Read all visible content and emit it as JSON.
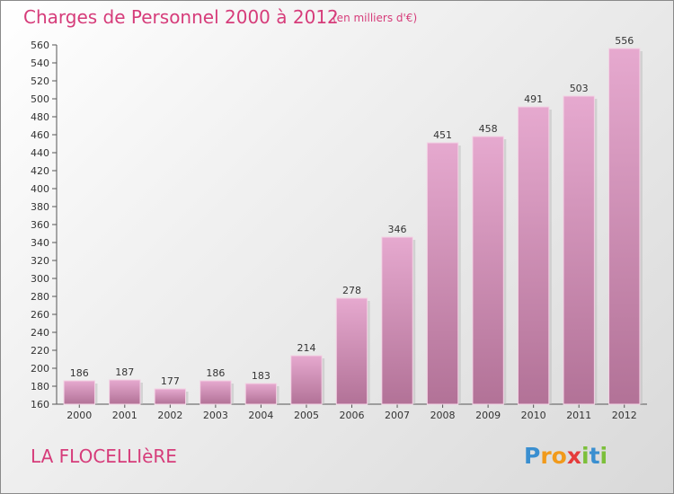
{
  "chart_data": {
    "type": "bar",
    "title": "Charges de Personnel 2000 à 2012",
    "subtitle": "(en milliers d'€)",
    "categories": [
      "2000",
      "2001",
      "2002",
      "2003",
      "2004",
      "2005",
      "2006",
      "2007",
      "2008",
      "2009",
      "2010",
      "2011",
      "2012"
    ],
    "values": [
      186,
      187,
      177,
      186,
      183,
      214,
      278,
      346,
      451,
      458,
      491,
      503,
      556
    ],
    "ylim": [
      160,
      560
    ],
    "yticks": [
      160,
      180,
      200,
      220,
      240,
      260,
      280,
      300,
      320,
      340,
      360,
      380,
      400,
      420,
      440,
      460,
      480,
      500,
      520,
      540,
      560
    ],
    "grid": false,
    "bar_color": "#d48fb8",
    "title_color": "#d63c7a"
  },
  "commune": "LA FLOCELLIèRE",
  "logo": {
    "letters": [
      "P",
      "r",
      "o",
      "x",
      "i",
      "t",
      "i"
    ],
    "colors": [
      "#3a8fd0",
      "#f19a1b",
      "#f19a1b",
      "#e53b3b",
      "#7cbf3a",
      "#3a8fd0",
      "#7cbf3a"
    ]
  }
}
